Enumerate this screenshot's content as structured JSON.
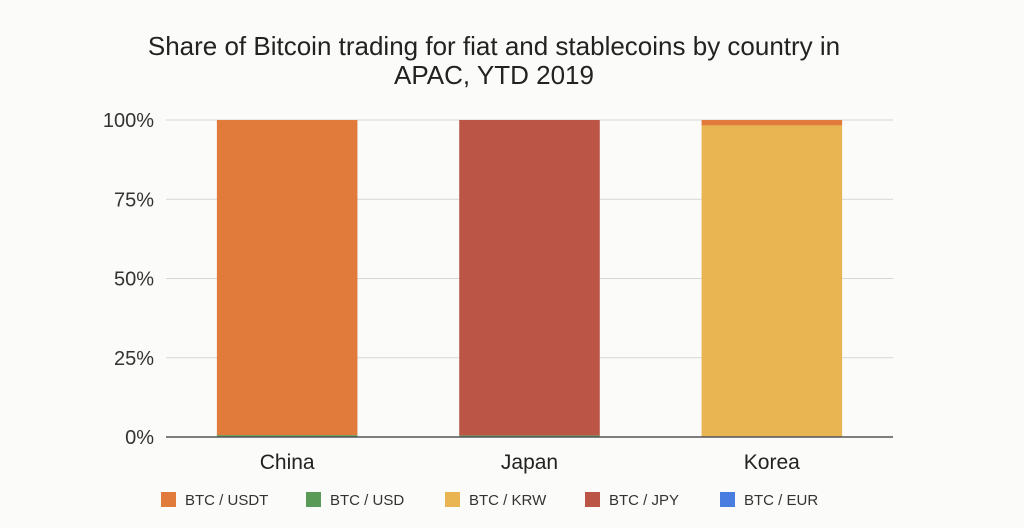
{
  "chart_data": {
    "type": "bar",
    "stacked": true,
    "title_lines": [
      "Share of Bitcoin trading for fiat and stablecoins by country in",
      "APAC, YTD 2019"
    ],
    "categories": [
      "China",
      "Japan",
      "Korea"
    ],
    "y_tick_labels": [
      "0%",
      "25%",
      "50%",
      "75%",
      "100%"
    ],
    "ylim": [
      0,
      100
    ],
    "grid": true,
    "legend_position": "bottom",
    "series": [
      {
        "name": "BTC / USDT",
        "color": "#e07b3c",
        "values": [
          99.4,
          0,
          1.7
        ]
      },
      {
        "name": "BTC / USD",
        "color": "#5a9a57",
        "values": [
          0.6,
          0.5,
          0
        ]
      },
      {
        "name": "BTC / KRW",
        "color": "#e9b552",
        "values": [
          0,
          0,
          98.3
        ]
      },
      {
        "name": "BTC / JPY",
        "color": "#bb5545",
        "values": [
          0,
          99.5,
          0
        ]
      },
      {
        "name": "BTC / EUR",
        "color": "#4a7de0",
        "values": [
          0,
          0,
          0
        ]
      }
    ],
    "stack_order": [
      "BTC / USD",
      "BTC / KRW",
      "BTC / JPY",
      "BTC / EUR",
      "BTC / USDT"
    ]
  }
}
